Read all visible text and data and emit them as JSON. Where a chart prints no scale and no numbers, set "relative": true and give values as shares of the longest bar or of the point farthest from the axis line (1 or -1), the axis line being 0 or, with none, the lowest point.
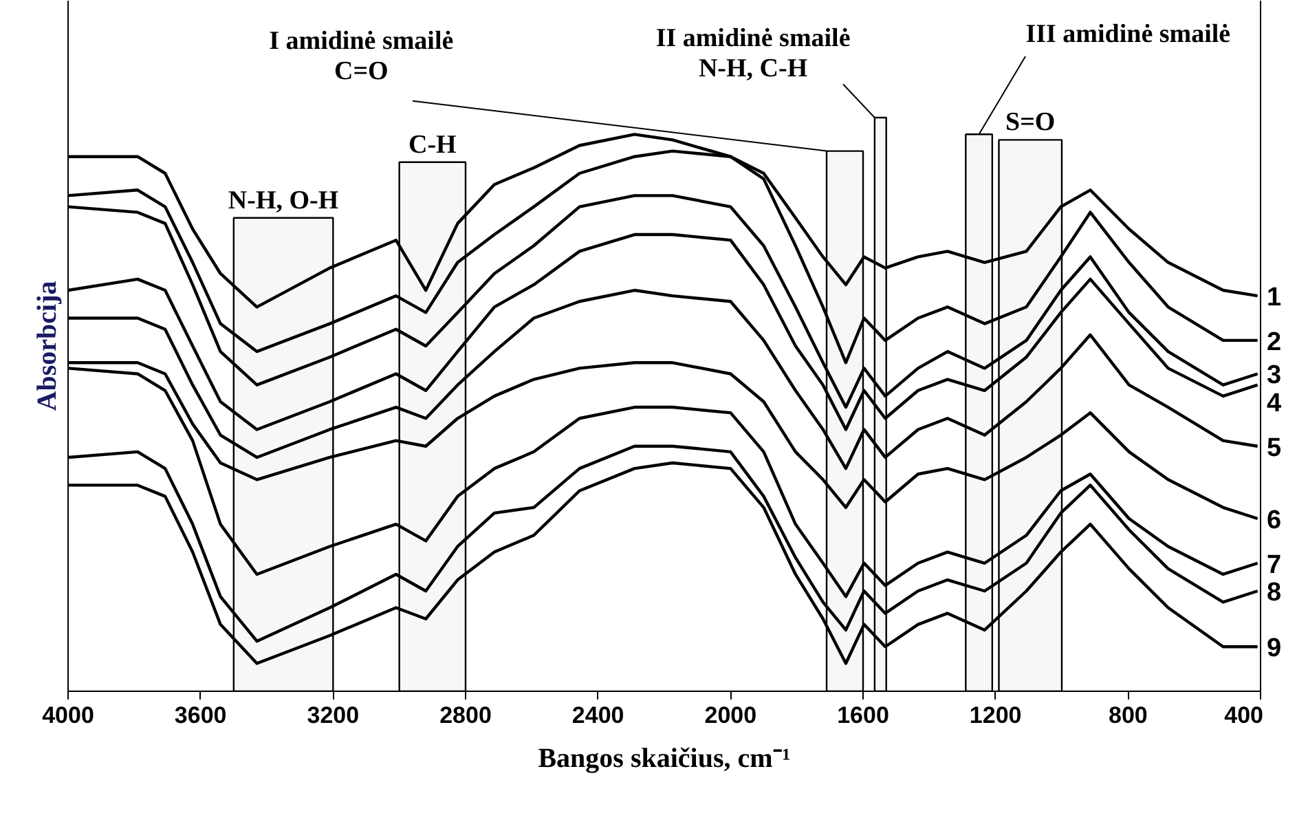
{
  "chart_data": {
    "type": "line",
    "relative": true,
    "xlabel": "Bangos skaičius, cm⁻¹",
    "ylabel": "Absorbcija",
    "x": [
      4000,
      3790,
      3707,
      3624,
      3540,
      3430,
      3210,
      3010,
      2920,
      2824,
      2713,
      2594,
      2456,
      2290,
      2175,
      2000,
      1900,
      1804,
      1721,
      1652,
      1597,
      1533,
      1434,
      1345,
      1233,
      1107,
      1003,
      914,
      797,
      679,
      513,
      409
    ],
    "xlim": [
      4000,
      400
    ],
    "xticks": [
      4000,
      3600,
      3200,
      2800,
      2400,
      2000,
      1600,
      1200,
      800,
      400
    ],
    "tick_labels": "x",
    "grid": false,
    "legend": false,
    "marker": "none",
    "line_style": "solid",
    "series": [
      {
        "name": "1",
        "color": "#000000",
        "values": [
          0.96,
          0.96,
          0.93,
          0.83,
          0.75,
          0.69,
          0.76,
          0.81,
          0.72,
          0.84,
          0.91,
          0.94,
          0.98,
          1.0,
          0.99,
          0.96,
          0.93,
          0.85,
          0.78,
          0.73,
          0.78,
          0.76,
          0.78,
          0.79,
          0.77,
          0.79,
          0.87,
          0.9,
          0.83,
          0.77,
          0.72,
          0.71
        ]
      },
      {
        "name": "2",
        "color": "#000000",
        "values": [
          0.89,
          0.9,
          0.87,
          0.77,
          0.66,
          0.61,
          0.66,
          0.71,
          0.68,
          0.77,
          0.82,
          0.87,
          0.93,
          0.96,
          0.97,
          0.96,
          0.92,
          0.8,
          0.69,
          0.59,
          0.67,
          0.63,
          0.67,
          0.69,
          0.66,
          0.69,
          0.78,
          0.86,
          0.77,
          0.69,
          0.63,
          0.63
        ]
      },
      {
        "name": "3",
        "color": "#000000",
        "values": [
          0.87,
          0.86,
          0.84,
          0.73,
          0.61,
          0.55,
          0.6,
          0.65,
          0.62,
          0.68,
          0.75,
          0.8,
          0.87,
          0.89,
          0.89,
          0.87,
          0.8,
          0.69,
          0.59,
          0.51,
          0.58,
          0.53,
          0.58,
          0.61,
          0.58,
          0.63,
          0.72,
          0.78,
          0.68,
          0.61,
          0.55,
          0.57
        ]
      },
      {
        "name": "4",
        "color": "#000000",
        "values": [
          0.72,
          0.74,
          0.72,
          0.62,
          0.52,
          0.47,
          0.52,
          0.57,
          0.54,
          0.61,
          0.69,
          0.73,
          0.79,
          0.82,
          0.82,
          0.81,
          0.73,
          0.62,
          0.55,
          0.47,
          0.54,
          0.49,
          0.54,
          0.56,
          0.54,
          0.6,
          0.68,
          0.74,
          0.66,
          0.58,
          0.53,
          0.55
        ]
      },
      {
        "name": "5",
        "color": "#000000",
        "values": [
          0.67,
          0.67,
          0.65,
          0.55,
          0.46,
          0.42,
          0.47,
          0.51,
          0.49,
          0.55,
          0.61,
          0.67,
          0.7,
          0.72,
          0.71,
          0.7,
          0.63,
          0.54,
          0.47,
          0.4,
          0.47,
          0.42,
          0.47,
          0.49,
          0.46,
          0.52,
          0.58,
          0.64,
          0.55,
          0.51,
          0.45,
          0.44
        ]
      },
      {
        "name": "6",
        "color": "#000000",
        "values": [
          0.59,
          0.59,
          0.57,
          0.48,
          0.41,
          0.38,
          0.42,
          0.45,
          0.44,
          0.49,
          0.53,
          0.56,
          0.58,
          0.59,
          0.59,
          0.57,
          0.52,
          0.43,
          0.38,
          0.33,
          0.38,
          0.34,
          0.39,
          0.4,
          0.38,
          0.42,
          0.46,
          0.5,
          0.43,
          0.38,
          0.33,
          0.31
        ]
      },
      {
        "name": "7",
        "color": "#000000",
        "values": [
          0.58,
          0.57,
          0.54,
          0.45,
          0.3,
          0.21,
          0.26,
          0.3,
          0.27,
          0.35,
          0.4,
          0.43,
          0.49,
          0.51,
          0.51,
          0.5,
          0.43,
          0.3,
          0.23,
          0.17,
          0.23,
          0.19,
          0.23,
          0.25,
          0.23,
          0.28,
          0.36,
          0.39,
          0.31,
          0.26,
          0.21,
          0.23
        ]
      },
      {
        "name": "8",
        "color": "#000000",
        "values": [
          0.42,
          0.43,
          0.4,
          0.3,
          0.17,
          0.09,
          0.15,
          0.21,
          0.18,
          0.26,
          0.32,
          0.33,
          0.4,
          0.44,
          0.44,
          0.43,
          0.35,
          0.24,
          0.16,
          0.11,
          0.18,
          0.14,
          0.18,
          0.2,
          0.18,
          0.23,
          0.32,
          0.37,
          0.29,
          0.22,
          0.16,
          0.18
        ]
      },
      {
        "name": "9",
        "color": "#000000",
        "values": [
          0.37,
          0.37,
          0.35,
          0.25,
          0.12,
          0.05,
          0.1,
          0.15,
          0.13,
          0.2,
          0.25,
          0.28,
          0.36,
          0.4,
          0.41,
          0.4,
          0.33,
          0.21,
          0.13,
          0.05,
          0.12,
          0.08,
          0.12,
          0.14,
          0.11,
          0.18,
          0.25,
          0.3,
          0.22,
          0.15,
          0.08,
          0.08
        ]
      }
    ],
    "bands": [
      {
        "axis": "x",
        "from": 3500,
        "to": 3200,
        "label": "N-H, O-H",
        "color": "#000000"
      },
      {
        "axis": "x",
        "from": 3000,
        "to": 2800,
        "label": "C-H",
        "color": "#000000"
      },
      {
        "axis": "x",
        "from": 1710,
        "to": 1600,
        "label": "I amidinė smailė\nC=O",
        "color": "#000000"
      },
      {
        "axis": "x",
        "from": 1565,
        "to": 1530,
        "label": "II amidinė smailė\nN-H, C-H",
        "color": "#000000"
      },
      {
        "axis": "x",
        "from": 1290,
        "to": 1210,
        "label": "III amidinė smailė",
        "color": "#000000"
      },
      {
        "axis": "x",
        "from": 1190,
        "to": 1000,
        "label": "S=O",
        "color": "#000000"
      }
    ]
  }
}
